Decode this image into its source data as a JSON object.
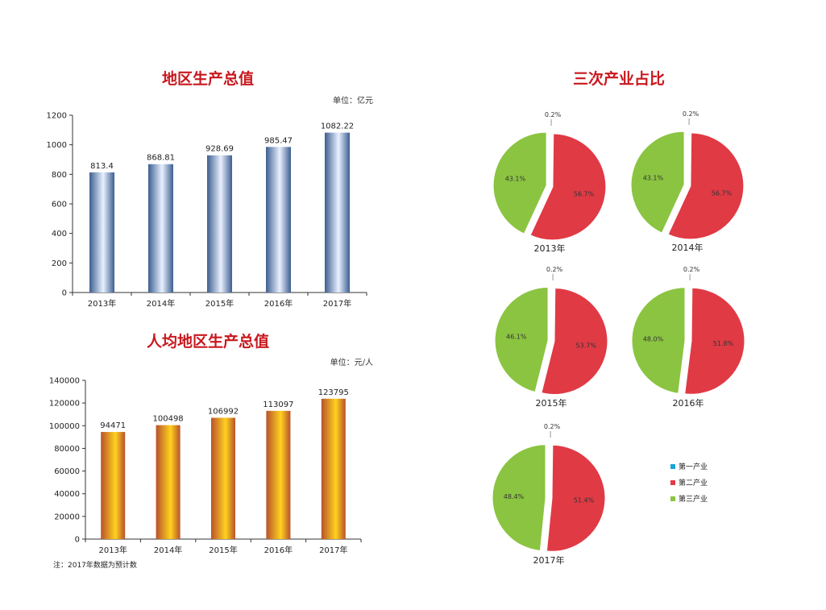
{
  "colors": {
    "title": "#c8181e",
    "primary": "#1aa3d6",
    "secondary": "#e03a45",
    "tertiary": "#8bc441",
    "bar_blue_dark": "#3d5e90",
    "bar_blue_light": "#e9f1ff",
    "bar_orange_yellow": "#ffd21e",
    "bar_orange_dark": "#b8522c"
  },
  "chart_data": [
    {
      "type": "bar",
      "title": "地区生产总值",
      "unit": "单位：亿元",
      "categories": [
        "2013年",
        "2014年",
        "2015年",
        "2016年",
        "2017年"
      ],
      "values": [
        813.4,
        868.81,
        928.69,
        985.47,
        1082.22
      ],
      "value_labels": [
        "813.4",
        "868.81",
        "928.69",
        "985.47",
        "1082.22"
      ],
      "ylim": [
        0,
        1200
      ],
      "yticks": [
        "0",
        "200",
        "400",
        "600",
        "800",
        "1000",
        "1200"
      ],
      "ytick_values": [
        0,
        200,
        400,
        600,
        800,
        1000,
        1200
      ],
      "grid": false
    },
    {
      "type": "bar",
      "title": "人均地区生产总值",
      "unit": "单位：元/人",
      "categories": [
        "2013年",
        "2014年",
        "2015年",
        "2016年",
        "2017年"
      ],
      "values": [
        94471,
        100498,
        106992,
        113097,
        123795
      ],
      "value_labels": [
        "94471",
        "100498",
        "106992",
        "113097",
        "123795"
      ],
      "ylim": [
        0,
        140000
      ],
      "yticks": [
        "0",
        "20000",
        "40000",
        "60000",
        "80000",
        "100000",
        "120000",
        "140000"
      ],
      "ytick_values": [
        0,
        20000,
        40000,
        60000,
        80000,
        100000,
        120000,
        140000
      ],
      "grid": false,
      "note": "注：2017年数据为预计数"
    },
    {
      "type": "pie",
      "title": "三次产业占比",
      "legend": [
        "第一产业",
        "第二产业",
        "第三产业"
      ],
      "legend_placement": "right",
      "pies": [
        {
          "year": "2013年",
          "values": [
            0.2,
            56.7,
            43.1
          ],
          "labels": [
            "0.2%",
            "56.7%",
            "43.1%"
          ]
        },
        {
          "year": "2014年",
          "values": [
            0.2,
            56.7,
            43.1
          ],
          "labels": [
            "0.2%",
            "56.7%",
            "43.1%"
          ]
        },
        {
          "year": "2015年",
          "values": [
            0.2,
            53.7,
            46.1
          ],
          "labels": [
            "0.2%",
            "53.7%",
            "46.1%"
          ]
        },
        {
          "year": "2016年",
          "values": [
            0.2,
            51.8,
            48.0
          ],
          "labels": [
            "0.2%",
            "51.8%",
            "48.0%"
          ]
        },
        {
          "year": "2017年",
          "values": [
            0.2,
            51.4,
            48.4
          ],
          "labels": [
            "0.2%",
            "51.4%",
            "48.4%"
          ]
        }
      ]
    }
  ]
}
